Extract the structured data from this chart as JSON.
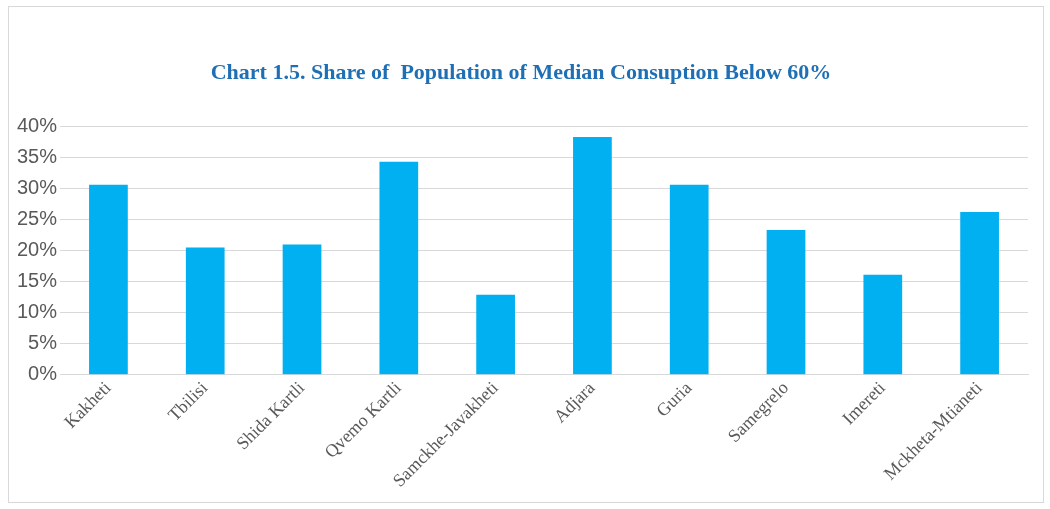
{
  "chart_data": {
    "type": "bar",
    "title": "Chart 1.5. Share of  Population of Median Consuption Below 60%",
    "categories": [
      "Kakheti",
      "Tbilisi",
      "Shida Kartli",
      "Qvemo Kartli",
      "Samckhe-Javakheti",
      "Adjara",
      "Guria",
      "Samegrelo",
      "Imereti",
      "Mckheta-Mtianeti"
    ],
    "values": [
      30.6,
      20.5,
      21.0,
      34.3,
      12.9,
      38.3,
      30.6,
      23.3,
      16.1,
      26.2
    ],
    "color": "#00b0f0",
    "ylim": [
      0,
      40
    ],
    "yticks": [
      {
        "value": 0,
        "label": "0%"
      },
      {
        "value": 5,
        "label": "5%"
      },
      {
        "value": 10,
        "label": "10%"
      },
      {
        "value": 15,
        "label": "15%"
      },
      {
        "value": 20,
        "label": "20%"
      },
      {
        "value": 25,
        "label": "25%"
      },
      {
        "value": 30,
        "label": "30%"
      },
      {
        "value": 35,
        "label": "35%"
      },
      {
        "value": 40,
        "label": "40%"
      }
    ],
    "grid": "y",
    "legend": false
  }
}
